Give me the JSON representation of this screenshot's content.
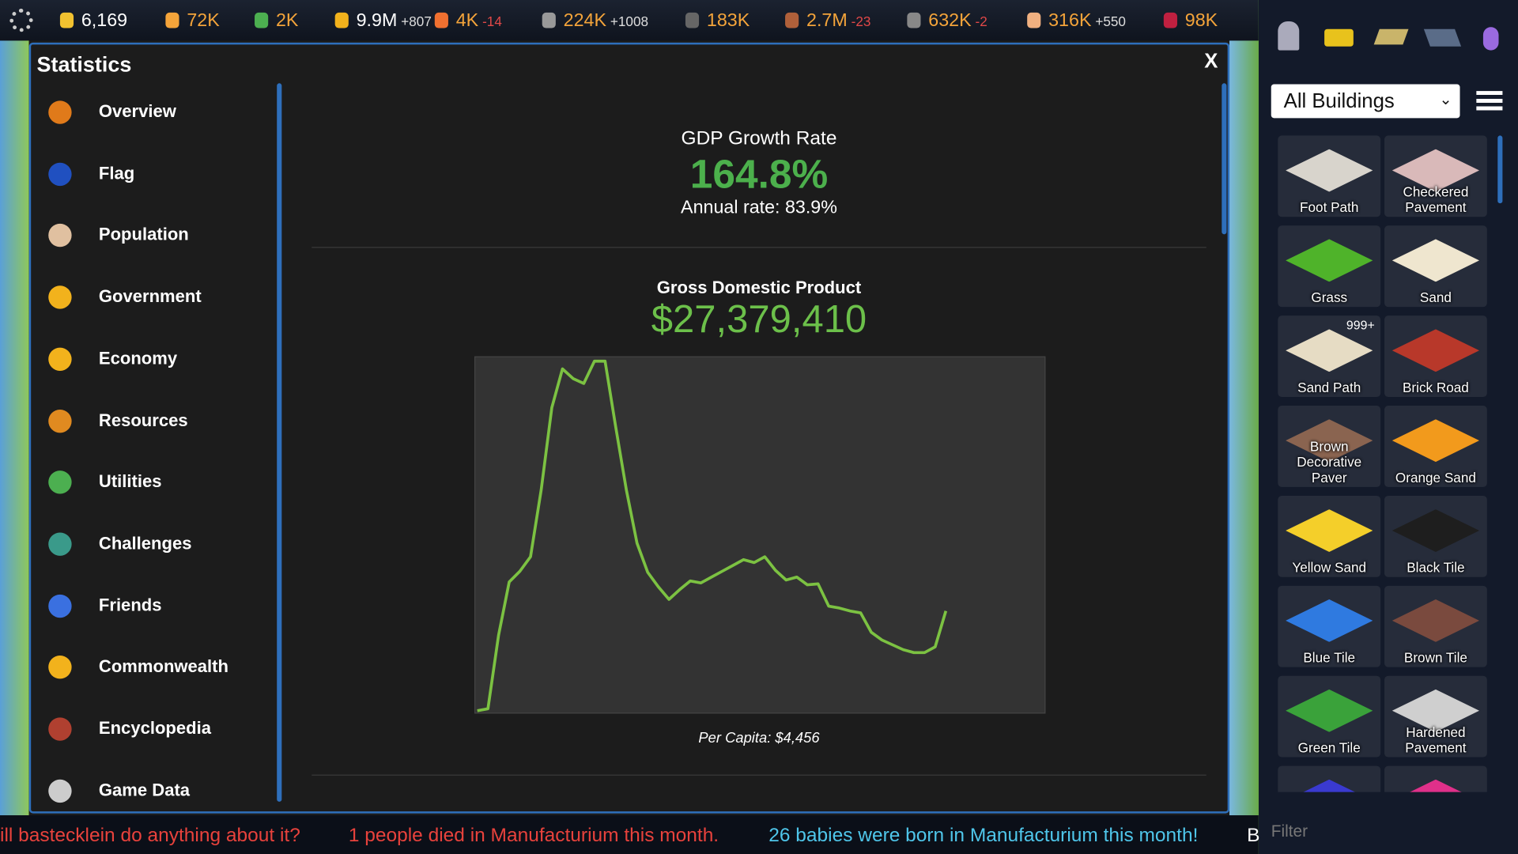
{
  "top_bar": {
    "stats": [
      {
        "value": "6,169"
      },
      {
        "value": "72K"
      },
      {
        "value": "2K"
      },
      {
        "value": "9.9M",
        "delta": "+807"
      },
      {
        "value": "4K",
        "delta": "-14"
      },
      {
        "value": "224K",
        "delta": "+1008"
      },
      {
        "value": "183K"
      },
      {
        "value": "2.7M",
        "delta": "-23"
      },
      {
        "value": "632K",
        "delta": "-2"
      },
      {
        "value": "316K",
        "delta": "+550"
      },
      {
        "value": "98K"
      }
    ]
  },
  "statistics": {
    "title": "Statistics",
    "close": "X",
    "nav": [
      "Overview",
      "Flag",
      "Population",
      "Government",
      "Economy",
      "Resources",
      "Utilities",
      "Challenges",
      "Friends",
      "Commonwealth",
      "Encyclopedia",
      "Game Data"
    ],
    "gdp_growth": {
      "label": "GDP Growth Rate",
      "value": "164.8%",
      "annual": "Annual rate: 83.9%"
    },
    "gdp": {
      "label": "Gross Domestic Product",
      "value": "$27,379,410",
      "per_capita": "Per Capita: $4,456"
    }
  },
  "gdp_chart": {
    "type": "line",
    "color": "#7cc242",
    "values": [
      2,
      4,
      80,
      135,
      146,
      161,
      230,
      315,
      355,
      345,
      340,
      363,
      363,
      295,
      230,
      175,
      145,
      130,
      117,
      127,
      136,
      134,
      140,
      146,
      152,
      158,
      155,
      161,
      147,
      137,
      140,
      132,
      133,
      110,
      108,
      105,
      103,
      83,
      75,
      70,
      65,
      62,
      62,
      68,
      105
    ]
  },
  "building_panel": {
    "filter": "All Buildings",
    "search_placeholder": "Filter",
    "tiles": [
      {
        "label": "Foot Path",
        "color": "#d8d4cc"
      },
      {
        "label": "Checkered Pavement",
        "color": "#d9b9b9"
      },
      {
        "label": "Grass",
        "color": "#4fb32a"
      },
      {
        "label": "Sand",
        "color": "#efe6cf"
      },
      {
        "label": "Sand Path",
        "color": "#e6dcc4",
        "badge": "999+"
      },
      {
        "label": "Brick Road",
        "color": "#b8382a"
      },
      {
        "label": "Brown Decorative Paver",
        "color": "#8a6450"
      },
      {
        "label": "Orange Sand",
        "color": "#f29a1c"
      },
      {
        "label": "Yellow Sand",
        "color": "#f4cf2a"
      },
      {
        "label": "Black Tile",
        "color": "#1e1e1e"
      },
      {
        "label": "Blue Tile",
        "color": "#2f7ae0"
      },
      {
        "label": "Brown Tile",
        "color": "#7a4a3e"
      },
      {
        "label": "Green Tile",
        "color": "#3aa23a"
      },
      {
        "label": "Hardened Pavement",
        "color": "#cfcfcf"
      }
    ]
  },
  "ticker": [
    {
      "text": "ill bastecklein do anything about it?",
      "color": "#e8423c"
    },
    {
      "text": "1 people died in Manufacturium this month.",
      "color": "#e8423c"
    },
    {
      "text": "26 babies were born in Manufacturium this month!",
      "color": "#4fc6ea"
    },
    {
      "text": "B",
      "color": "#ffffff"
    }
  ]
}
